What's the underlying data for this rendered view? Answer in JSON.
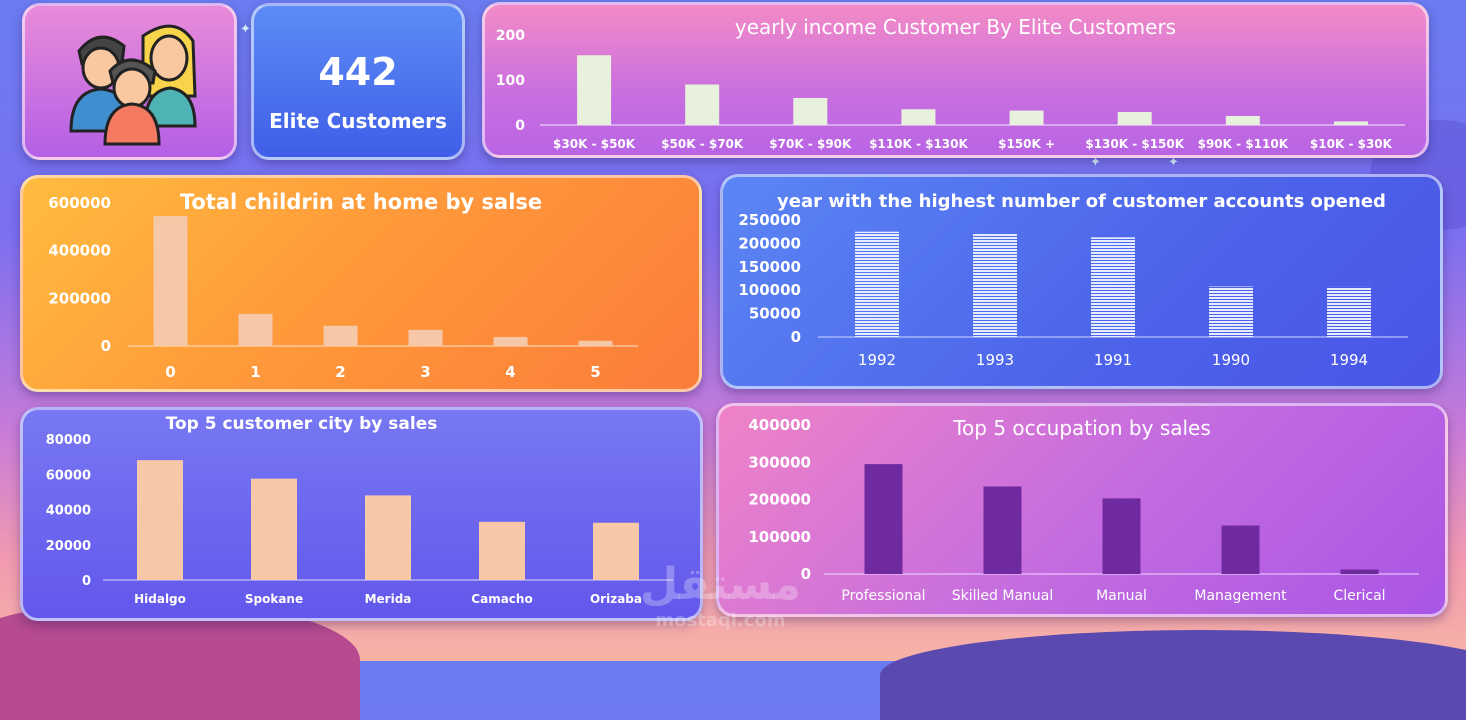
{
  "kpi": {
    "value": "442",
    "label": "Elite Customers"
  },
  "icons": {
    "avatar": "family-group-icon"
  },
  "colors": {
    "bar_light": "#e8f1dc",
    "bar_peach": "#f6c8a8",
    "bar_purple": "#6f2aa0",
    "bar_blue_stripe": "#e6ecff"
  },
  "watermark": {
    "main": "مستقل",
    "sub": "mostaql.com"
  },
  "chart_data": [
    {
      "id": "income",
      "type": "bar",
      "title": "yearly income Customer  By  Elite Customers",
      "categories": [
        "$30K - $50K",
        "$50K - $70K",
        "$70K - $90K",
        "$110K - $130K",
        "$150K +",
        "$130K - $150K",
        "$90K - $110K",
        "$10K - $30K"
      ],
      "values": [
        155,
        90,
        60,
        35,
        32,
        29,
        20,
        8
      ],
      "ylim": [
        0,
        200
      ],
      "yticks": [
        "0",
        "100",
        "200"
      ],
      "ytick_values": [
        0,
        100,
        200
      ]
    },
    {
      "id": "children",
      "type": "bar",
      "title": "Total childrin at home by salse",
      "categories": [
        "0",
        "1",
        "2",
        "3",
        "4",
        "5"
      ],
      "values": [
        545000,
        135000,
        85000,
        68000,
        38000,
        22000
      ],
      "ylim": [
        0,
        600000
      ],
      "yticks": [
        "0",
        "200000",
        "400000",
        "600000"
      ],
      "ytick_values": [
        0,
        200000,
        400000,
        600000
      ]
    },
    {
      "id": "years",
      "type": "bar",
      "title": "year with the highest number of customer accounts opened",
      "categories": [
        "1992",
        "1993",
        "1991",
        "1990",
        "1994"
      ],
      "values": [
        225000,
        220000,
        213000,
        108000,
        107000
      ],
      "ylim": [
        0,
        250000
      ],
      "yticks": [
        "0",
        "50000",
        "100000",
        "150000",
        "200000",
        "250000"
      ],
      "ytick_values": [
        0,
        50000,
        100000,
        150000,
        200000,
        250000
      ]
    },
    {
      "id": "city",
      "type": "bar",
      "title": "Top 5 customer city by sales",
      "categories": [
        "Hidalgo",
        "Spokane",
        "Merida",
        "Camacho",
        "Orizaba"
      ],
      "values": [
        68000,
        57500,
        48000,
        33000,
        32500
      ],
      "ylim": [
        0,
        80000
      ],
      "yticks": [
        "0",
        "20000",
        "40000",
        "60000",
        "80000"
      ],
      "ytick_values": [
        0,
        20000,
        40000,
        60000,
        80000
      ]
    },
    {
      "id": "occupation",
      "type": "bar",
      "title": "Top 5 occupation  by sales",
      "categories": [
        "Professional",
        "Skilled Manual",
        "Manual",
        "Management",
        "Clerical"
      ],
      "values": [
        295000,
        235000,
        203000,
        130000,
        12000
      ],
      "ylim": [
        0,
        400000
      ],
      "yticks": [
        "0",
        "100000",
        "200000",
        "300000",
        "400000"
      ],
      "ytick_values": [
        0,
        100000,
        200000,
        300000,
        400000
      ]
    }
  ]
}
